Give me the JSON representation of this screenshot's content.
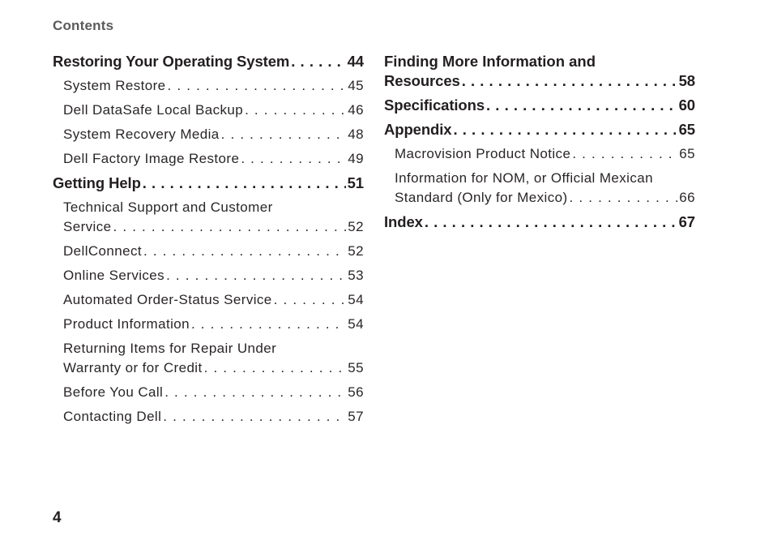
{
  "header": "Contents",
  "page_number": "4",
  "left": {
    "s1": {
      "title": "Restoring Your Operating System",
      "page": "44"
    },
    "s1_items": [
      {
        "title": "System Restore",
        "page": "45"
      },
      {
        "title": "Dell DataSafe Local Backup",
        "page": "46"
      },
      {
        "title": "System Recovery Media",
        "page": "48"
      },
      {
        "title": "Dell Factory Image Restore",
        "page": "49"
      }
    ],
    "s2": {
      "title": "Getting Help",
      "page": "51"
    },
    "s2_items": [
      {
        "line1": "Technical Support and Customer",
        "title": "Service",
        "page": "52"
      },
      {
        "title": "DellConnect",
        "page": "52"
      },
      {
        "title": "Online Services",
        "page": "53"
      },
      {
        "title": "Automated Order-Status Service",
        "page": "54"
      },
      {
        "title": "Product Information",
        "page": "54"
      },
      {
        "line1": "Returning Items for Repair Under",
        "title": "Warranty or for Credit",
        "page": "55"
      },
      {
        "title": "Before You Call",
        "page": "56"
      },
      {
        "title": "Contacting Dell",
        "page": "57"
      }
    ]
  },
  "right": {
    "s1": {
      "line1": "Finding More Information and",
      "title": "Resources",
      "page": "58"
    },
    "s2": {
      "title": "Specifications",
      "page": "60"
    },
    "s3": {
      "title": "Appendix",
      "page": "65"
    },
    "s3_items": [
      {
        "title": "Macrovision Product Notice",
        "page": "65"
      },
      {
        "line1": "Information for NOM, or Official Mexican",
        "title": "Standard (Only for Mexico)",
        "page": "66"
      }
    ],
    "s4": {
      "title": "Index",
      "page": "67"
    }
  }
}
